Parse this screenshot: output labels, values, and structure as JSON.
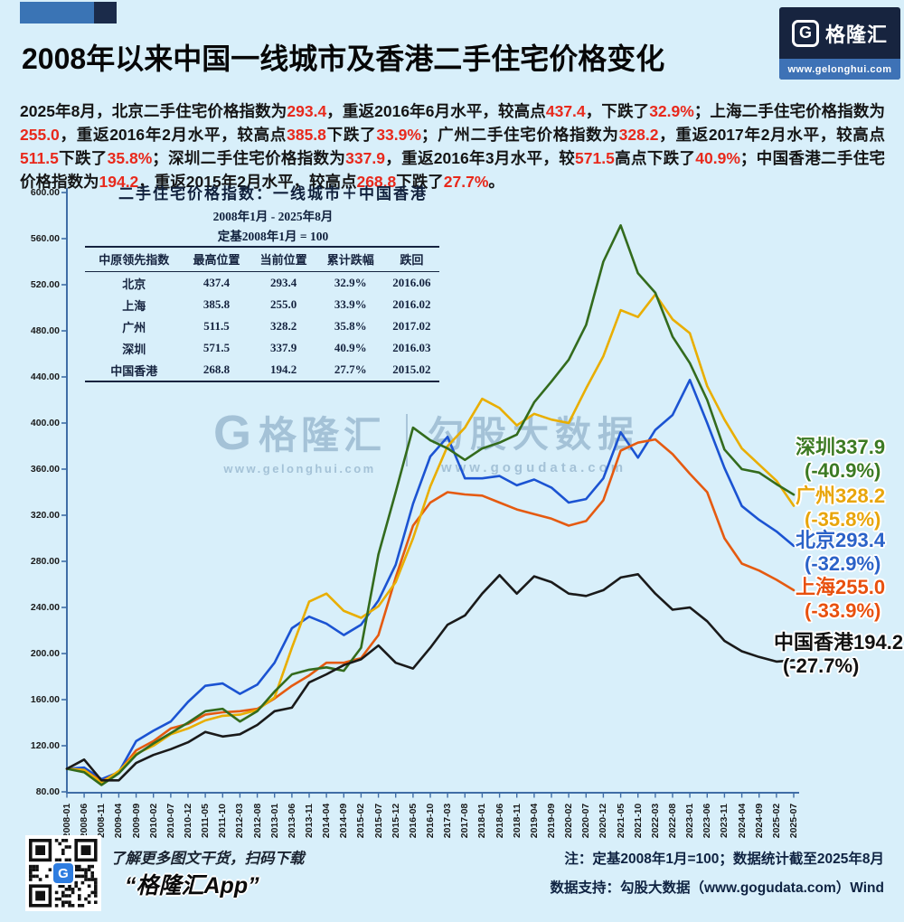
{
  "header": {
    "title": "2008年以来中国一线城市及香港二手住宅价格变化",
    "logo": {
      "mark": "G",
      "brand": "格隆汇",
      "url": "www.gelonghui.com"
    }
  },
  "intro": {
    "segments": [
      {
        "t": "2025年8月，北京二手住宅价格指数为",
        "hl": false
      },
      {
        "t": "293.4",
        "hl": true
      },
      {
        "t": "，重返2016年6月水平，较高点",
        "hl": false
      },
      {
        "t": "437.4",
        "hl": true
      },
      {
        "t": "，下跌了",
        "hl": false
      },
      {
        "t": "32.9%",
        "hl": true
      },
      {
        "t": "；上海二手住宅价格指数为",
        "hl": false
      },
      {
        "t": "255.0",
        "hl": true
      },
      {
        "t": "，重返2016年2月水平，较高点",
        "hl": false
      },
      {
        "t": "385.8",
        "hl": true
      },
      {
        "t": "下跌了",
        "hl": false
      },
      {
        "t": "33.9%",
        "hl": true
      },
      {
        "t": "；广州二手住宅价格指数为",
        "hl": false
      },
      {
        "t": "328.2",
        "hl": true
      },
      {
        "t": "，重返2017年2月水平，较高点",
        "hl": false
      },
      {
        "t": "511.5",
        "hl": true
      },
      {
        "t": "下跌了",
        "hl": false
      },
      {
        "t": "35.8%",
        "hl": true
      },
      {
        "t": "；深圳二手住宅价格指数为",
        "hl": false
      },
      {
        "t": "337.9",
        "hl": true
      },
      {
        "t": "，重返2016年3月水平，较",
        "hl": false
      },
      {
        "t": "571.5",
        "hl": true
      },
      {
        "t": "高点下跌了",
        "hl": false
      },
      {
        "t": "40.9%",
        "hl": true
      },
      {
        "t": "；中国香港二手住宅价格指数为",
        "hl": false
      },
      {
        "t": "194.2",
        "hl": true
      },
      {
        "t": "，重返2015年2月水平，较高点",
        "hl": false
      },
      {
        "t": "268.8",
        "hl": true
      },
      {
        "t": "下跌了",
        "hl": false
      },
      {
        "t": "27.7%",
        "hl": true
      },
      {
        "t": "。",
        "hl": false
      }
    ]
  },
  "chart_data": {
    "type": "line",
    "title": "二手住宅价格指数：一线城市＋中国香港",
    "subtitle": "2008年1月 - 2025年8月",
    "base_note": "定基2008年1月 = 100",
    "ylim": [
      80,
      600
    ],
    "yticks": [
      600,
      560,
      520,
      480,
      440,
      400,
      360,
      320,
      280,
      240,
      200,
      160,
      120,
      80
    ],
    "grid": false,
    "legend_position": "right-end-labels",
    "x": [
      "2008-01",
      "2008-06",
      "2008-11",
      "2009-04",
      "2009-09",
      "2010-02",
      "2010-07",
      "2010-12",
      "2011-05",
      "2011-10",
      "2012-03",
      "2012-08",
      "2013-01",
      "2013-06",
      "2013-11",
      "2014-04",
      "2014-09",
      "2015-02",
      "2015-07",
      "2015-12",
      "2016-05",
      "2016-10",
      "2017-03",
      "2017-08",
      "2018-01",
      "2018-06",
      "2018-11",
      "2019-04",
      "2019-09",
      "2020-02",
      "2020-07",
      "2020-12",
      "2021-05",
      "2021-10",
      "2022-03",
      "2022-08",
      "2023-01",
      "2023-06",
      "2023-11",
      "2024-04",
      "2024-09",
      "2025-02",
      "2025-07"
    ],
    "series": [
      {
        "name": "北京",
        "color": "#1b53d2",
        "values": [
          100,
          101,
          91,
          97,
          124,
          133,
          141,
          158,
          172,
          174,
          165,
          173,
          192,
          222,
          232,
          226,
          216,
          225,
          246,
          277,
          330,
          371,
          388,
          352,
          352,
          354,
          346,
          351,
          344,
          331,
          334,
          352,
          392,
          370,
          394,
          407,
          437.4,
          400,
          361,
          328,
          316,
          306,
          293.4
        ]
      },
      {
        "name": "上海",
        "color": "#e55a10",
        "values": [
          100,
          99,
          89,
          97,
          116,
          124,
          135,
          139,
          147,
          149,
          150,
          152,
          161,
          172,
          181,
          192,
          192,
          196,
          216,
          266,
          311,
          331,
          340,
          338,
          337,
          331,
          325,
          321,
          317,
          311,
          315,
          333,
          376,
          383,
          385.8,
          373,
          356,
          340,
          300,
          278,
          272,
          264,
          255.0
        ]
      },
      {
        "name": "广州",
        "color": "#e9ae00",
        "values": [
          100,
          99,
          88,
          98,
          113,
          120,
          130,
          135,
          142,
          146,
          147,
          151,
          162,
          205,
          245,
          252,
          237,
          231,
          241,
          262,
          300,
          345,
          380,
          396,
          421,
          413,
          398,
          408,
          403,
          400,
          430,
          458,
          498,
          492,
          511.5,
          490,
          478,
          432,
          403,
          378,
          364,
          350,
          328.2
        ]
      },
      {
        "name": "深圳",
        "color": "#336b1d",
        "values": [
          100,
          97,
          86,
          96,
          112,
          122,
          131,
          140,
          150,
          152,
          141,
          150,
          167,
          182,
          186,
          188,
          185,
          205,
          286,
          340,
          396,
          385,
          378,
          368,
          378,
          383,
          390,
          418,
          436,
          455,
          485,
          540,
          571.5,
          530,
          513,
          475,
          452,
          420,
          377,
          360,
          357,
          347,
          337.9
        ]
      },
      {
        "name": "中国香港",
        "color": "#1a1a1a",
        "values": [
          100,
          108,
          90,
          90,
          105,
          112,
          117,
          123,
          132,
          128,
          130,
          138,
          150,
          153,
          175,
          182,
          190,
          195,
          207,
          192,
          187,
          205,
          225,
          233,
          252,
          268,
          252,
          267,
          262,
          252,
          250,
          255,
          266,
          268.8,
          252,
          238,
          240,
          228,
          211,
          202,
          197,
          193,
          194.2
        ]
      }
    ],
    "end_labels": [
      {
        "line1": "深圳337.9",
        "line2": "(-40.9%)",
        "color": "#3c7a23"
      },
      {
        "line1": "广州328.2",
        "line2": "(-35.8%)",
        "color": "#e8a50a"
      },
      {
        "line1": "北京293.4",
        "line2": "(-32.9%)",
        "color": "#2b62c8"
      },
      {
        "line1": "上海255.0",
        "line2": "(-33.9%)",
        "color": "#e8500e"
      },
      {
        "line1": "中国香港194.2",
        "line2": "(-27.7%)",
        "color": "#111111"
      }
    ]
  },
  "table": {
    "headers": [
      "中原领先指数",
      "最高位置",
      "当前位置",
      "累计跌幅",
      "跌回"
    ],
    "rows": [
      [
        "北京",
        "437.4",
        "293.4",
        "32.9%",
        "2016.06"
      ],
      [
        "上海",
        "385.8",
        "255.0",
        "33.9%",
        "2016.02"
      ],
      [
        "广州",
        "511.5",
        "328.2",
        "35.8%",
        "2017.02"
      ],
      [
        "深圳",
        "571.5",
        "337.9",
        "40.9%",
        "2016.03"
      ],
      [
        "中国香港",
        "268.8",
        "194.2",
        "27.7%",
        "2015.02"
      ]
    ]
  },
  "watermark": {
    "g": "G",
    "brand": "格隆汇",
    "brand_url": "www.gelonghui.com",
    "partner": "勾股大数据",
    "partner_url": "www.gogudata.com"
  },
  "footer": {
    "scan_hint": "了解更多图文干货，扫码下载",
    "app_name": "“格隆汇App”",
    "note1": "注：定基2008年1月=100；数据统计截至2025年8月",
    "note2": "数据支持：勾股大数据（www.gogudata.com）Wind"
  },
  "colors": {
    "highlight": "#e8291c",
    "axis": "#3f6da6",
    "background": "#d8effa",
    "qr_badge": "#2e7de0"
  }
}
